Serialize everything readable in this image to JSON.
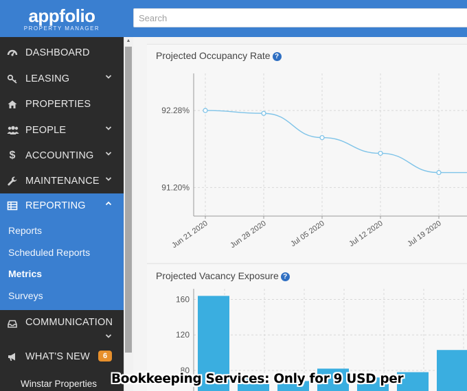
{
  "header": {
    "logo_text": "appfolio",
    "logo_subtitle": "PROPERTY MANAGER",
    "search_placeholder": "Search"
  },
  "sidebar": {
    "items": [
      {
        "label": "DASHBOARD",
        "icon": "dashboard-icon",
        "chevron": ""
      },
      {
        "label": "LEASING",
        "icon": "key-icon",
        "chevron": "down"
      },
      {
        "label": "PROPERTIES",
        "icon": "home-icon",
        "chevron": ""
      },
      {
        "label": "PEOPLE",
        "icon": "people-icon",
        "chevron": "down"
      },
      {
        "label": "ACCOUNTING",
        "icon": "dollar-icon",
        "chevron": "down"
      },
      {
        "label": "MAINTENANCE",
        "icon": "wrench-icon",
        "chevron": "down"
      },
      {
        "label": "REPORTING",
        "icon": "table-icon",
        "chevron": "up"
      }
    ],
    "reporting_subitems": [
      "Reports",
      "Scheduled Reports",
      "Metrics",
      "Surveys"
    ],
    "active_subitem": "Metrics",
    "communication_label": "COMMUNICATION",
    "whats_new_label": "WHAT'S NEW",
    "whats_new_badge": "6",
    "company_name": "Winstar Properties"
  },
  "colors": {
    "header_blue": "#3a7fd0",
    "sidebar_dark": "#2b2b2b",
    "line_color": "#7ec3e8",
    "bar_color": "#3aaee0",
    "badge_orange": "#e8902c"
  },
  "chart_data": [
    {
      "type": "line",
      "title": "Projected Occupancy Rate",
      "x": [
        "Jun 21 2020",
        "Jun 28 2020",
        "Jul 05 2020",
        "Jul 12 2020",
        "Jul 19 2020"
      ],
      "y_tick_labels": [
        "92.28%",
        "91.20%"
      ],
      "values": [
        92.28,
        92.24,
        91.9,
        91.68,
        91.41
      ],
      "ylim": [
        90.8,
        92.8
      ],
      "grid": true
    },
    {
      "type": "bar",
      "title": "Projected Vacancy Exposure",
      "y_tick_labels": [
        "160",
        "120",
        "80"
      ],
      "values": [
        164,
        73,
        68,
        82,
        72,
        78,
        103
      ],
      "ylim": [
        56,
        172
      ],
      "grid": true
    }
  ],
  "banner": {
    "text": "Bookkeeping Services: Only for 9 USD per"
  }
}
